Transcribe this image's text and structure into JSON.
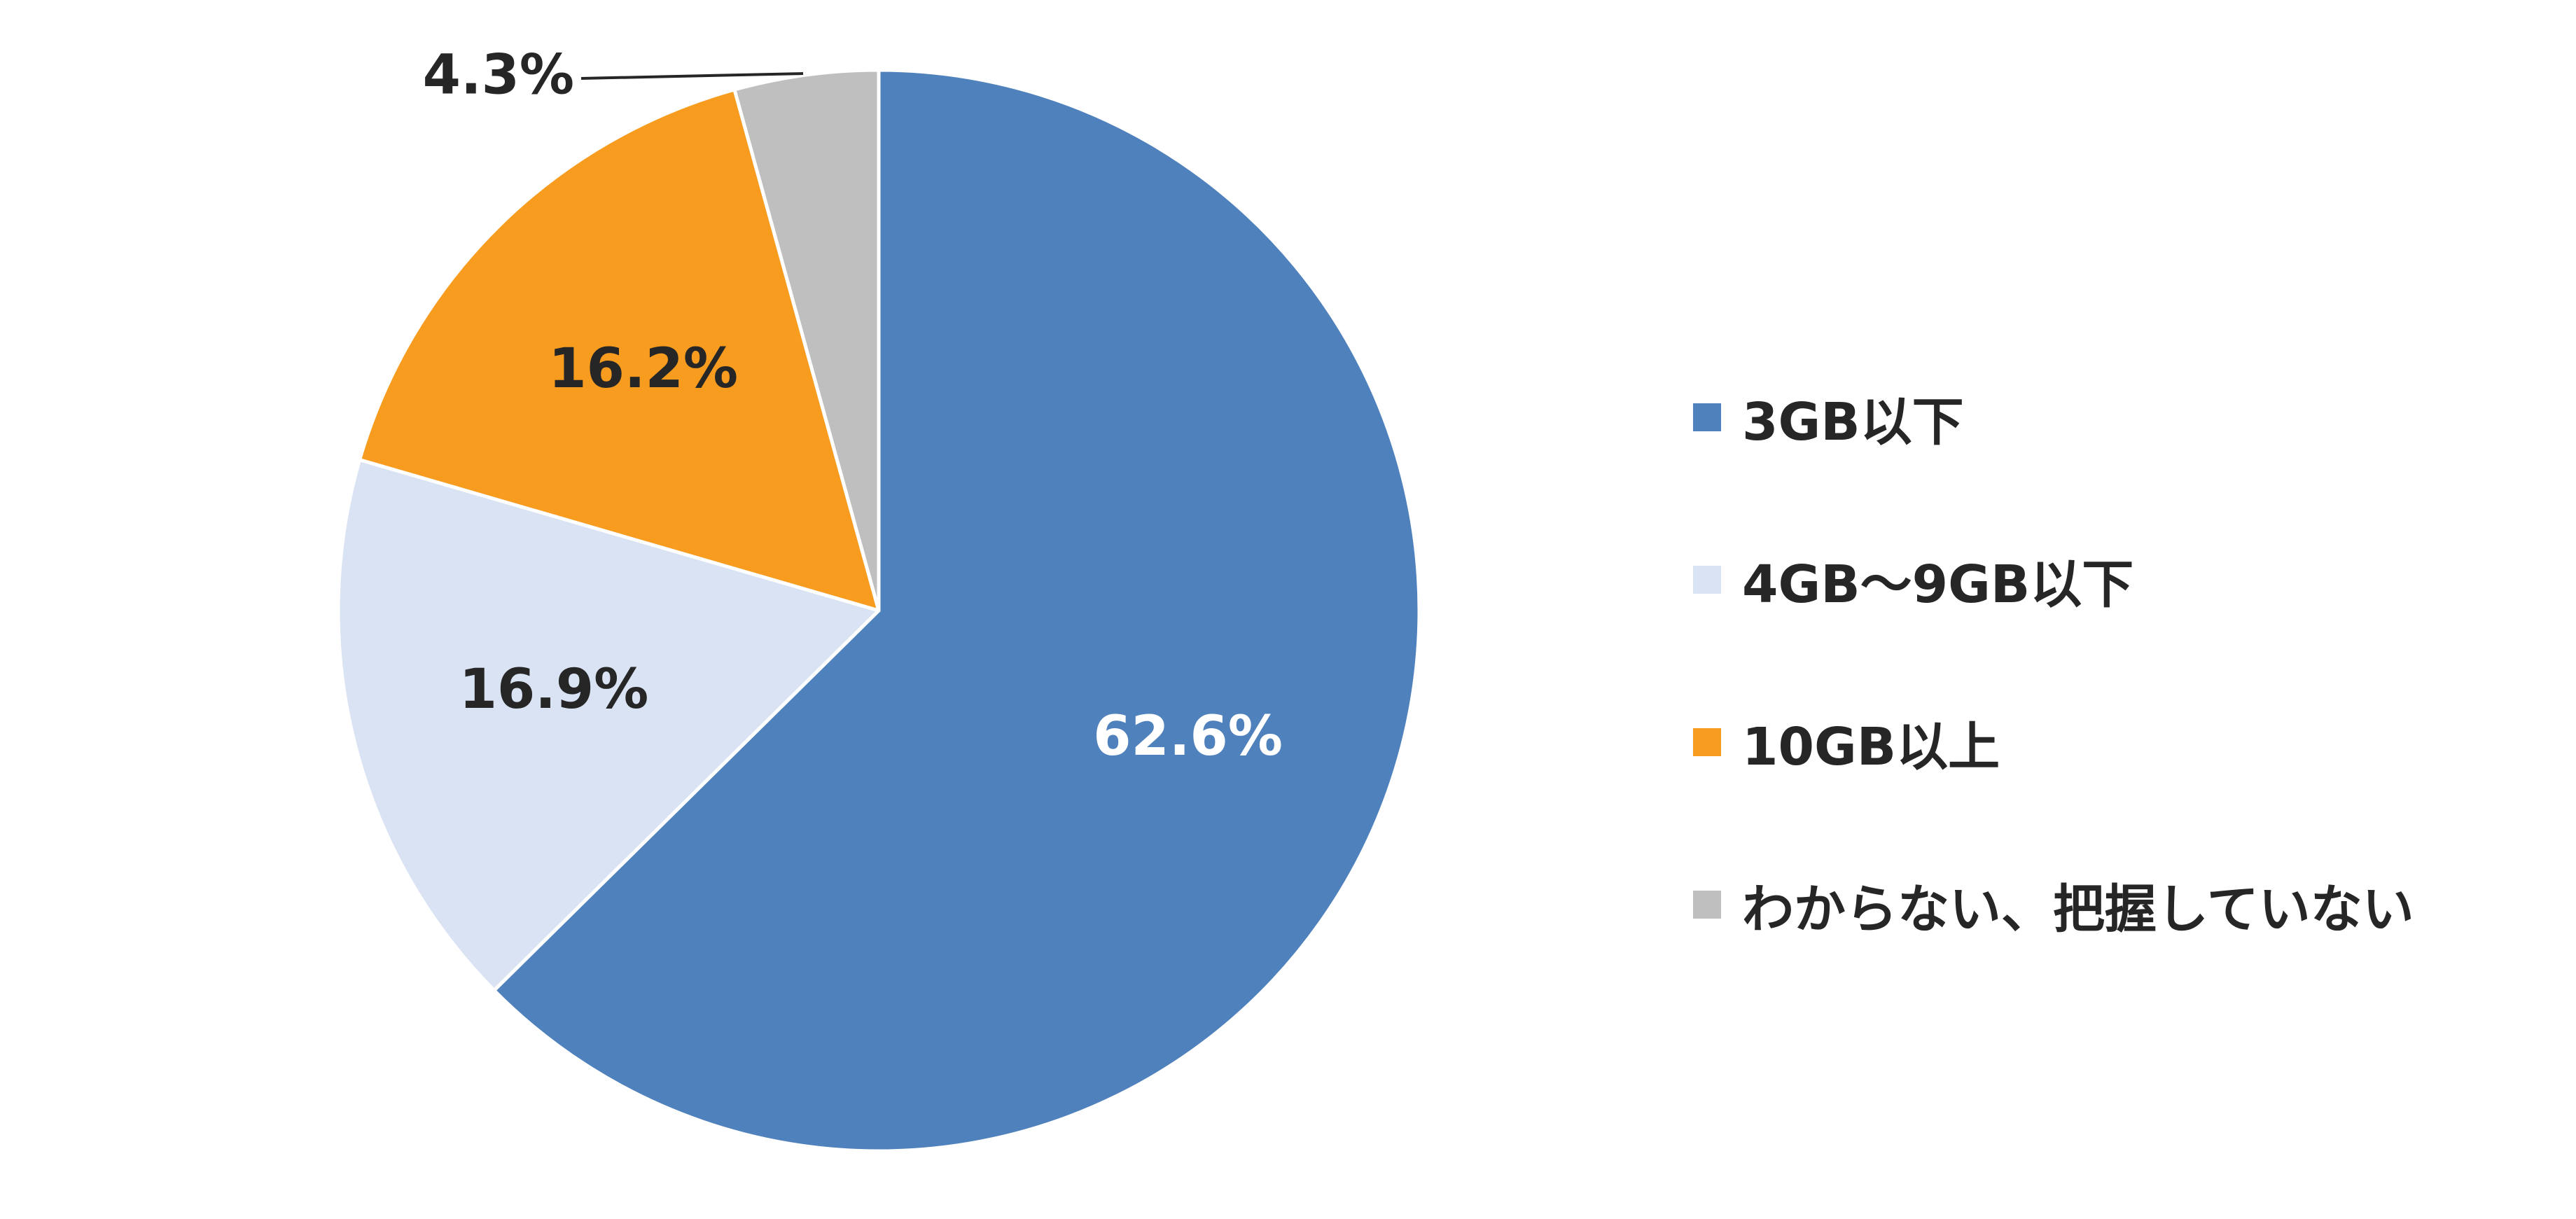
{
  "chart_data": {
    "type": "pie",
    "start_angle_deg": 0,
    "direction": "clockwise",
    "legend_position": "right",
    "slices": [
      {
        "label": "3GB以下",
        "value": 62.6,
        "display": "62.6%",
        "color": "#4F81BD",
        "label_color": "#FFFFFF"
      },
      {
        "label": "4GB～9GB以下",
        "value": 16.9,
        "display": "16.9%",
        "color": "#DAE3F3",
        "label_color": "#262626"
      },
      {
        "label": "10GB以上",
        "value": 16.2,
        "display": "16.2%",
        "color": "#F79C1F",
        "label_color": "#262626"
      },
      {
        "label": "わからない、把握していない",
        "value": 4.3,
        "display": "4.3%",
        "color": "#BFBFBF",
        "label_color": "#262626"
      }
    ]
  }
}
